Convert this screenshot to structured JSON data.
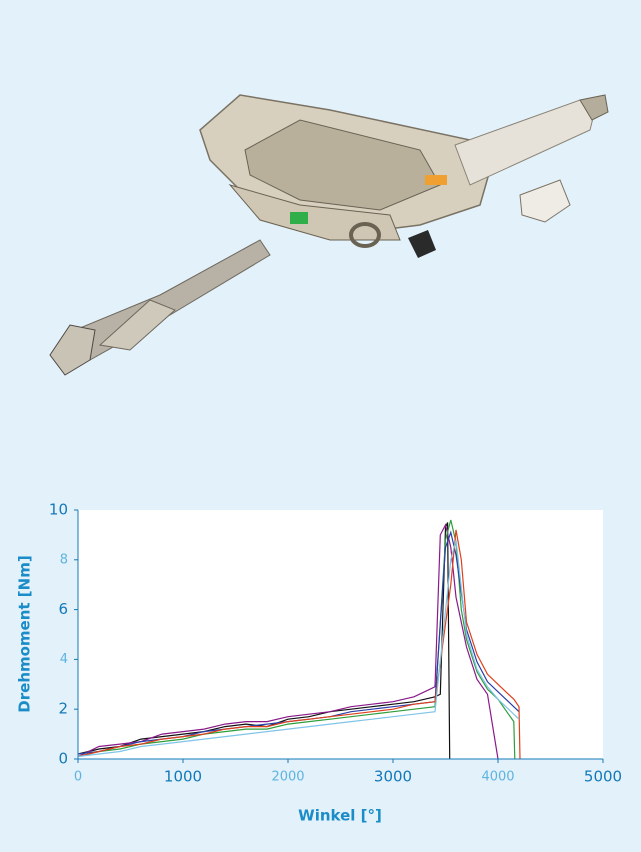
{
  "chart_data": {
    "type": "line",
    "x_label": "Winkel [°]",
    "y_label": "Drehmoment [Nm]",
    "xlim": [
      0,
      5000
    ],
    "ylim": [
      0,
      10
    ],
    "xticks": [
      0,
      1000,
      2000,
      3000,
      4000,
      5000
    ],
    "yticks": [
      0,
      2,
      4,
      6,
      8,
      10
    ],
    "series": [
      {
        "color": "#111111",
        "x": [
          0,
          200,
          400,
          600,
          800,
          1000,
          1200,
          1400,
          1600,
          1800,
          2000,
          2200,
          2400,
          2600,
          2800,
          3000,
          3200,
          3400,
          3450,
          3500,
          3520,
          3540
        ],
        "values": [
          0.2,
          0.4,
          0.5,
          0.8,
          0.9,
          1.0,
          1.1,
          1.3,
          1.4,
          1.3,
          1.6,
          1.7,
          1.9,
          2.0,
          2.1,
          2.2,
          2.3,
          2.5,
          2.6,
          9.3,
          9.5,
          0
        ]
      },
      {
        "color": "#8a1a8a",
        "x": [
          0,
          200,
          400,
          600,
          800,
          1000,
          1200,
          1400,
          1600,
          1800,
          2000,
          2200,
          2400,
          2600,
          2800,
          3000,
          3200,
          3300,
          3400,
          3450,
          3500,
          3550,
          3600,
          3700,
          3800,
          3900,
          4000
        ],
        "values": [
          0.1,
          0.5,
          0.6,
          0.7,
          1.0,
          1.1,
          1.2,
          1.4,
          1.5,
          1.5,
          1.7,
          1.8,
          1.9,
          2.1,
          2.2,
          2.3,
          2.5,
          2.7,
          2.9,
          9.0,
          9.4,
          8.5,
          6.5,
          4.5,
          3.2,
          2.6,
          0
        ]
      },
      {
        "color": "#2e9e3a",
        "x": [
          0,
          200,
          400,
          600,
          800,
          1000,
          1200,
          1400,
          1600,
          1800,
          2000,
          2200,
          2400,
          2600,
          2800,
          3000,
          3200,
          3400,
          3500,
          3550,
          3600,
          3650,
          3700,
          3800,
          3900,
          4000,
          4100,
          4150,
          4160
        ],
        "values": [
          0.1,
          0.3,
          0.4,
          0.6,
          0.7,
          0.8,
          1.0,
          1.1,
          1.2,
          1.2,
          1.4,
          1.5,
          1.6,
          1.7,
          1.8,
          1.9,
          2.0,
          2.1,
          8.8,
          9.6,
          8.7,
          6.0,
          4.8,
          3.5,
          2.8,
          2.4,
          1.8,
          1.5,
          0
        ]
      },
      {
        "color": "#2a3fa8",
        "x": [
          0,
          200,
          400,
          600,
          800,
          1000,
          1200,
          1400,
          1600,
          1800,
          2000,
          2200,
          2400,
          2600,
          2800,
          3000,
          3200,
          3400,
          3500,
          3550,
          3600,
          3700,
          3800,
          3900,
          4000,
          4100,
          4200
        ],
        "values": [
          0.2,
          0.3,
          0.5,
          0.7,
          0.8,
          0.9,
          1.1,
          1.2,
          1.3,
          1.4,
          1.5,
          1.6,
          1.7,
          1.9,
          2.0,
          2.1,
          2.2,
          2.3,
          8.5,
          9.1,
          8.2,
          5.2,
          3.9,
          3.1,
          2.7,
          2.3,
          1.9
        ]
      },
      {
        "color": "#e0401a",
        "x": [
          0,
          200,
          400,
          600,
          800,
          1000,
          1200,
          1400,
          1600,
          1800,
          2000,
          2200,
          2400,
          2600,
          2800,
          3000,
          3200,
          3400,
          3550,
          3600,
          3650,
          3700,
          3800,
          3900,
          4000,
          4100,
          4150,
          4200,
          4210
        ],
        "values": [
          0.1,
          0.3,
          0.5,
          0.6,
          0.8,
          0.9,
          1.0,
          1.2,
          1.3,
          1.3,
          1.5,
          1.6,
          1.7,
          1.8,
          1.9,
          2.0,
          2.2,
          2.3,
          7.0,
          9.2,
          8.0,
          5.5,
          4.2,
          3.4,
          3.0,
          2.6,
          2.4,
          2.1,
          0
        ]
      },
      {
        "color": "#7fc4e8",
        "x": [
          0,
          200,
          400,
          600,
          800,
          1000,
          1200,
          1400,
          1600,
          1800,
          2000,
          2200,
          2400,
          2600,
          2800,
          3000,
          3200,
          3400,
          3550,
          3600,
          3700,
          3800,
          3900,
          4000,
          4100,
          4200
        ],
        "values": [
          0.1,
          0.2,
          0.3,
          0.5,
          0.6,
          0.7,
          0.8,
          0.9,
          1.0,
          1.1,
          1.2,
          1.3,
          1.4,
          1.5,
          1.6,
          1.7,
          1.8,
          1.9,
          8.0,
          8.8,
          5.0,
          3.6,
          2.9,
          2.4,
          2.0,
          1.6
        ]
      }
    ]
  }
}
